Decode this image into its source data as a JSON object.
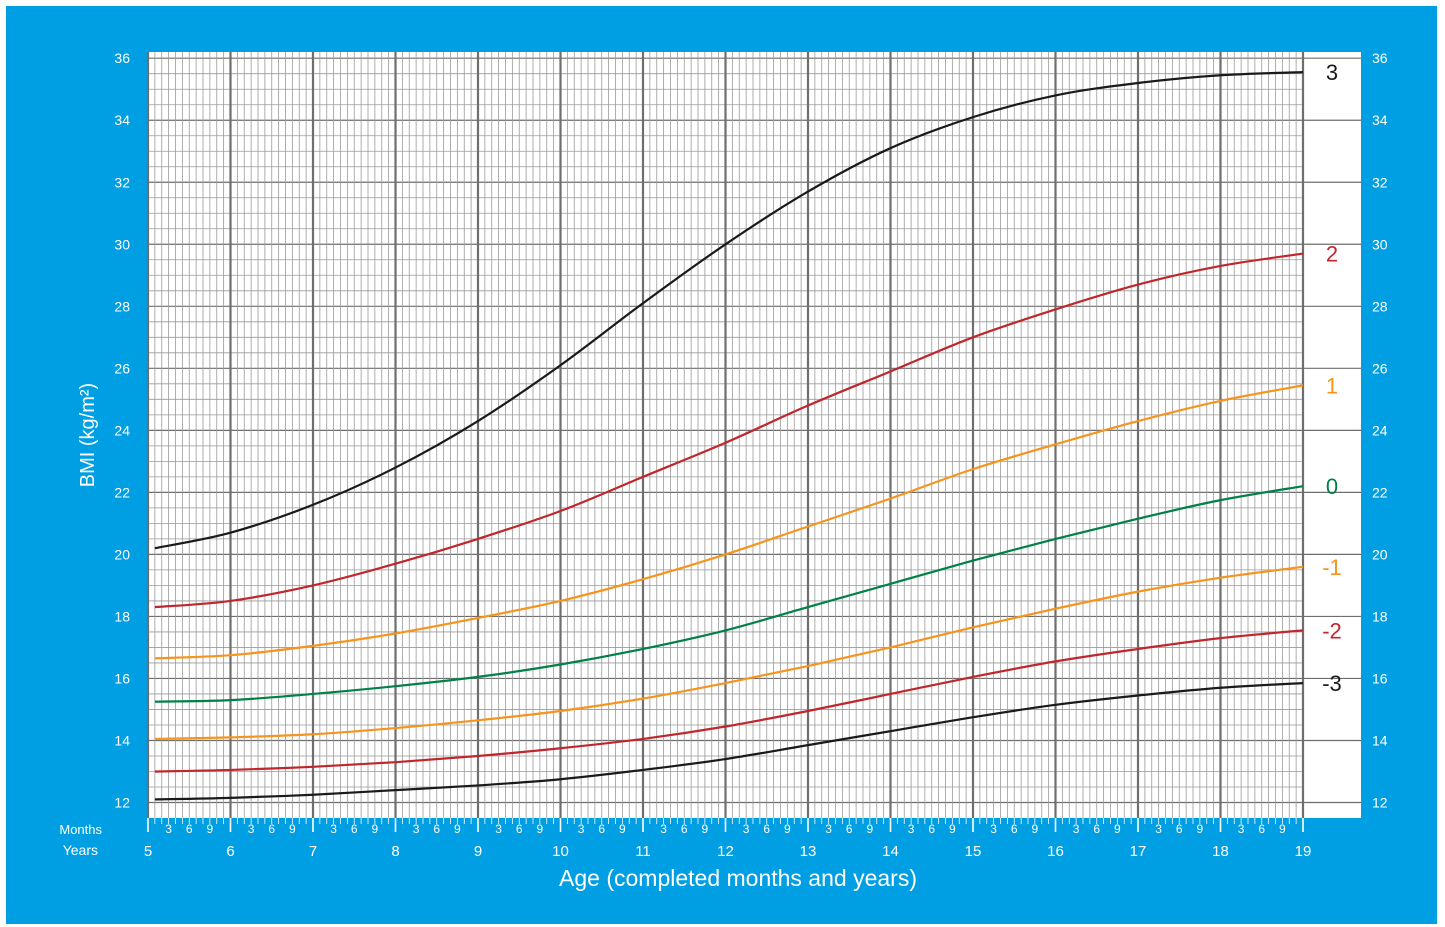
{
  "chart_data": {
    "type": "line",
    "title": "",
    "xlabel": "Age (completed months and years)",
    "ylabel": "BMI (kg/m²)",
    "row_labels": {
      "months": "Months",
      "years": "Years"
    },
    "xlim": [
      5,
      19
    ],
    "ylim": [
      11.5,
      36.2
    ],
    "x_ticks": [
      5,
      6,
      7,
      8,
      9,
      10,
      11,
      12,
      13,
      14,
      15,
      16,
      17,
      18,
      19
    ],
    "x_tick_labels": [
      "5",
      "6",
      "7",
      "8",
      "9",
      "10",
      "11",
      "12",
      "13",
      "14",
      "15",
      "16",
      "17",
      "18",
      "19"
    ],
    "month_ticks": [
      3,
      6,
      9
    ],
    "month_tick_labels": [
      "3",
      "6",
      "9"
    ],
    "y_ticks": [
      12,
      14,
      16,
      18,
      20,
      22,
      24,
      26,
      28,
      30,
      32,
      34,
      36
    ],
    "y_tick_labels": [
      "12",
      "14",
      "16",
      "18",
      "20",
      "22",
      "24",
      "26",
      "28",
      "30",
      "32",
      "34",
      "36"
    ],
    "grid": true,
    "x": [
      5.083,
      6,
      7,
      8,
      9,
      10,
      11,
      12,
      13,
      14,
      15,
      16,
      17,
      18,
      19
    ],
    "series": [
      {
        "name": "3",
        "color": "#1a1a1a",
        "values": [
          20.2,
          20.7,
          21.6,
          22.8,
          24.3,
          26.1,
          28.1,
          30.0,
          31.7,
          33.1,
          34.1,
          34.8,
          35.2,
          35.45,
          35.55
        ]
      },
      {
        "name": "2",
        "color": "#c0272d",
        "values": [
          18.3,
          18.5,
          19.0,
          19.7,
          20.5,
          21.4,
          22.5,
          23.6,
          24.8,
          25.9,
          27.0,
          27.9,
          28.7,
          29.3,
          29.7
        ]
      },
      {
        "name": "1",
        "color": "#f7941d",
        "values": [
          16.65,
          16.75,
          17.05,
          17.45,
          17.95,
          18.5,
          19.2,
          20.0,
          20.9,
          21.8,
          22.75,
          23.55,
          24.3,
          24.95,
          25.45
        ]
      },
      {
        "name": "0",
        "color": "#008145",
        "values": [
          15.25,
          15.3,
          15.5,
          15.75,
          16.05,
          16.45,
          16.95,
          17.55,
          18.3,
          19.05,
          19.8,
          20.5,
          21.15,
          21.75,
          22.2
        ]
      },
      {
        "name": "-1",
        "color": "#f7941d",
        "values": [
          14.05,
          14.1,
          14.2,
          14.4,
          14.65,
          14.95,
          15.35,
          15.85,
          16.4,
          17.0,
          17.65,
          18.25,
          18.8,
          19.25,
          19.6
        ]
      },
      {
        "name": "-2",
        "color": "#c0272d",
        "values": [
          13.0,
          13.05,
          13.15,
          13.3,
          13.5,
          13.75,
          14.05,
          14.45,
          14.95,
          15.5,
          16.05,
          16.55,
          16.95,
          17.3,
          17.55
        ]
      },
      {
        "name": "-3",
        "color": "#1a1a1a",
        "values": [
          12.1,
          12.15,
          12.25,
          12.4,
          12.55,
          12.75,
          13.05,
          13.4,
          13.85,
          14.3,
          14.75,
          15.15,
          15.45,
          15.7,
          15.85
        ]
      }
    ],
    "colors": {
      "background": "#009fe3",
      "plot": "#ffffff",
      "minor_grid": "#9a9a9a",
      "major_grid": "#6e6e6e",
      "text": "#ffffff"
    }
  }
}
